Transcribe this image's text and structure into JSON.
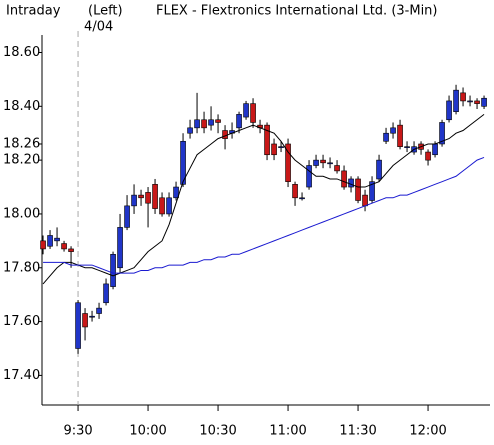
{
  "chart_data": {
    "type": "candlestick",
    "label": "Intraday",
    "axis_side": "(Left)",
    "title": "FLEX - Flextronics International Ltd.  (3-Min)",
    "annotations": [
      {
        "text": "4/04",
        "x": 5
      }
    ],
    "open": [
      17.9,
      17.88,
      17.9,
      17.89,
      17.87,
      17.5,
      17.63,
      17.62,
      17.63,
      17.67,
      17.73,
      17.8,
      17.95,
      18.03,
      18.07,
      18.08,
      18.11,
      18.06,
      18.0,
      18.06,
      18.11,
      18.3,
      18.32,
      18.35,
      18.33,
      18.35,
      18.31,
      18.3,
      18.32,
      18.36,
      18.41,
      18.33,
      18.33,
      18.26,
      18.25,
      18.26,
      18.11,
      18.06,
      18.1,
      18.18,
      18.2,
      18.19,
      18.18,
      18.16,
      18.1,
      18.13,
      18.07,
      18.05,
      18.13,
      18.27,
      18.3,
      18.33,
      18.25,
      18.23,
      18.26,
      18.23,
      18.22,
      18.26,
      18.35,
      18.38,
      18.45,
      18.42,
      18.42,
      18.4
    ],
    "high": [
      17.92,
      17.94,
      17.95,
      17.9,
      17.88,
      17.68,
      17.65,
      17.64,
      17.67,
      17.76,
      17.86,
      18.0,
      18.07,
      18.11,
      18.09,
      18.1,
      18.13,
      18.08,
      18.08,
      18.12,
      18.3,
      18.35,
      18.45,
      18.38,
      18.4,
      18.37,
      18.33,
      18.34,
      18.38,
      18.42,
      18.43,
      18.35,
      18.34,
      18.28,
      18.27,
      18.28,
      18.12,
      18.08,
      18.2,
      18.22,
      18.22,
      18.21,
      18.2,
      18.18,
      18.14,
      18.14,
      18.09,
      18.14,
      18.22,
      18.32,
      18.34,
      18.35,
      18.27,
      18.27,
      18.27,
      18.24,
      18.27,
      18.35,
      18.44,
      18.48,
      18.47,
      18.44,
      18.43,
      18.44
    ],
    "low": [
      17.85,
      17.87,
      17.88,
      17.86,
      17.8,
      17.48,
      17.53,
      17.6,
      17.61,
      17.66,
      17.72,
      17.78,
      17.94,
      18.0,
      18.03,
      17.95,
      18.0,
      17.99,
      17.99,
      18.05,
      18.1,
      18.28,
      18.3,
      18.3,
      18.31,
      18.3,
      18.24,
      18.28,
      18.3,
      18.35,
      18.32,
      18.3,
      18.2,
      18.2,
      18.23,
      18.1,
      18.03,
      18.05,
      18.09,
      18.17,
      18.17,
      18.17,
      18.15,
      18.09,
      18.08,
      18.04,
      18.01,
      18.04,
      18.12,
      18.26,
      18.28,
      18.24,
      18.23,
      18.22,
      18.22,
      18.18,
      18.21,
      18.25,
      18.34,
      18.37,
      18.4,
      18.4,
      18.39,
      18.39
    ],
    "close": [
      17.87,
      17.92,
      17.91,
      17.87,
      17.86,
      17.67,
      17.58,
      17.62,
      17.65,
      17.74,
      17.85,
      17.95,
      18.03,
      18.07,
      18.06,
      18.04,
      18.02,
      18.0,
      18.06,
      18.1,
      18.27,
      18.32,
      18.35,
      18.32,
      18.35,
      18.34,
      18.28,
      18.31,
      18.37,
      18.41,
      18.34,
      18.32,
      18.22,
      18.22,
      18.25,
      18.12,
      18.06,
      18.06,
      18.18,
      18.2,
      18.19,
      18.19,
      18.16,
      18.1,
      18.13,
      18.05,
      18.03,
      18.12,
      18.2,
      18.3,
      18.32,
      18.25,
      18.25,
      18.25,
      18.24,
      18.2,
      18.26,
      18.34,
      18.42,
      18.46,
      18.42,
      18.42,
      18.41,
      18.43
    ],
    "up_color": "#2035c8",
    "down_color": "#c81818",
    "lines": [
      {
        "color": "#000000",
        "values": [
          17.74,
          17.77,
          17.8,
          17.82,
          17.82,
          17.81,
          17.8,
          17.8,
          17.79,
          17.78,
          17.77,
          17.78,
          17.79,
          17.8,
          17.83,
          17.86,
          17.88,
          17.9,
          17.96,
          18.04,
          18.12,
          18.17,
          18.22,
          18.24,
          18.26,
          18.28,
          18.29,
          18.3,
          18.31,
          18.32,
          18.33,
          18.32,
          18.31,
          18.3,
          18.27,
          18.23,
          18.2,
          18.18,
          18.16,
          18.14,
          18.14,
          18.13,
          18.13,
          18.12,
          18.11,
          18.1,
          18.1,
          18.11,
          18.12,
          18.15,
          18.18,
          18.2,
          18.22,
          18.24,
          18.25,
          18.26,
          18.26,
          18.27,
          18.28,
          18.3,
          18.31,
          18.33,
          18.35,
          18.37
        ]
      },
      {
        "color": "#1a1ad0",
        "values": [
          17.82,
          17.82,
          17.82,
          17.82,
          17.81,
          17.81,
          17.81,
          17.81,
          17.8,
          17.79,
          17.78,
          17.78,
          17.78,
          17.78,
          17.79,
          17.79,
          17.8,
          17.8,
          17.81,
          17.81,
          17.81,
          17.82,
          17.82,
          17.83,
          17.83,
          17.84,
          17.84,
          17.85,
          17.85,
          17.86,
          17.87,
          17.88,
          17.89,
          17.9,
          17.91,
          17.92,
          17.93,
          17.94,
          17.95,
          17.96,
          17.97,
          17.98,
          17.99,
          18.0,
          18.01,
          18.02,
          18.03,
          18.04,
          18.05,
          18.06,
          18.06,
          18.07,
          18.07,
          18.08,
          18.09,
          18.1,
          18.11,
          18.12,
          18.13,
          18.14,
          18.16,
          18.18,
          18.2,
          18.21
        ]
      }
    ],
    "xlim": [
      -0.15,
      63.85
    ],
    "xticks": [
      {
        "value": 5,
        "label": "9:30"
      },
      {
        "value": 15,
        "label": "10:00"
      },
      {
        "value": 25,
        "label": "10:30"
      },
      {
        "value": 35,
        "label": "11:00"
      },
      {
        "value": 45,
        "label": "11:30"
      },
      {
        "value": 55,
        "label": "12:00"
      }
    ],
    "ylim": [
      17.29,
      18.665
    ],
    "yticks": [
      {
        "value": 17.4,
        "label": "17.40"
      },
      {
        "value": 17.6,
        "label": "17.60"
      },
      {
        "value": 17.8,
        "label": "17.80"
      },
      {
        "value": 18.0,
        "label": "18.00"
      },
      {
        "value": 18.2,
        "label": "18.20"
      },
      {
        "value": 18.26,
        "label": "18.26"
      },
      {
        "value": 18.4,
        "label": "18.40"
      },
      {
        "value": 18.6,
        "label": "18.60"
      }
    ]
  }
}
